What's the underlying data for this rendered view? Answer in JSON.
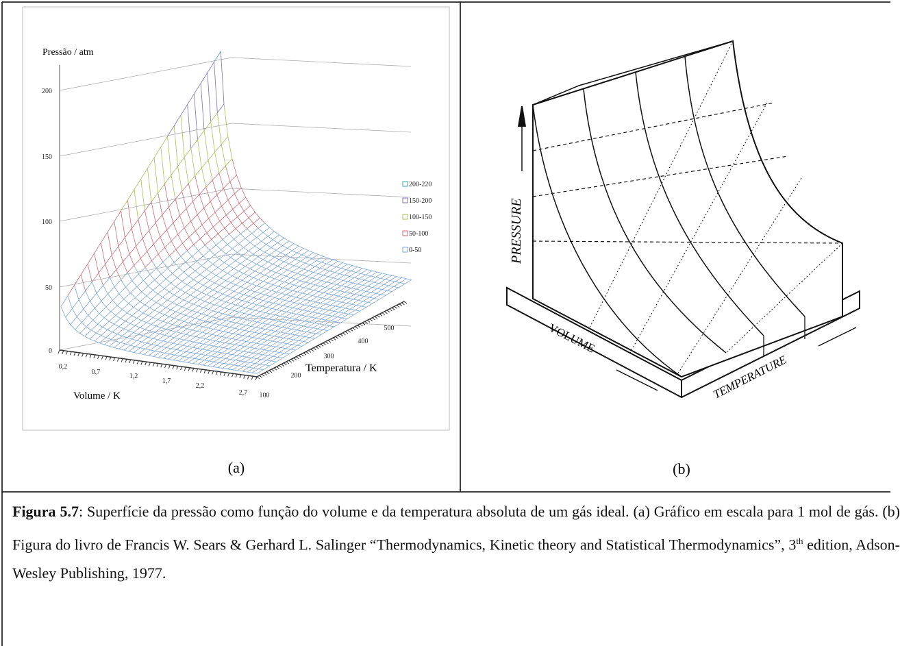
{
  "figure_a": {
    "y_axis_label": "Pressão / atm",
    "y_ticks": [
      "0",
      "50",
      "100",
      "150",
      "200"
    ],
    "x_axis_label": "Volume / K",
    "x_ticks": [
      "0,2",
      "0,7",
      "1,2",
      "1,7",
      "2,2",
      "2,7"
    ],
    "z_axis_label": "Temperatura / K",
    "z_ticks": [
      "100",
      "200",
      "300",
      "400",
      "500"
    ],
    "legend": [
      "200-220",
      "150-200",
      "100-150",
      "50-100",
      "0-50"
    ],
    "label": "(a)"
  },
  "figure_b": {
    "pressure_label": "PRESSURE",
    "volume_label": "VOLUME",
    "temperature_label": "TEMPERATURE",
    "label": "(b)"
  },
  "caption": {
    "label": "Figura 5.7",
    "text": ":  Superfície da pressão como função do volume e da temperatura absoluta de um gás ideal.  (a) Gráfico em escala para 1 mol de gás. (b) Figura do livro de Francis W. Sears & Gerhard L. Salinger “Thermodynamics, Kinetic theory and Statistical Thermodynamics”, 3",
    "sup": "th",
    "text_end": " edition, Adson-Wesley Publishing, 1977."
  }
}
